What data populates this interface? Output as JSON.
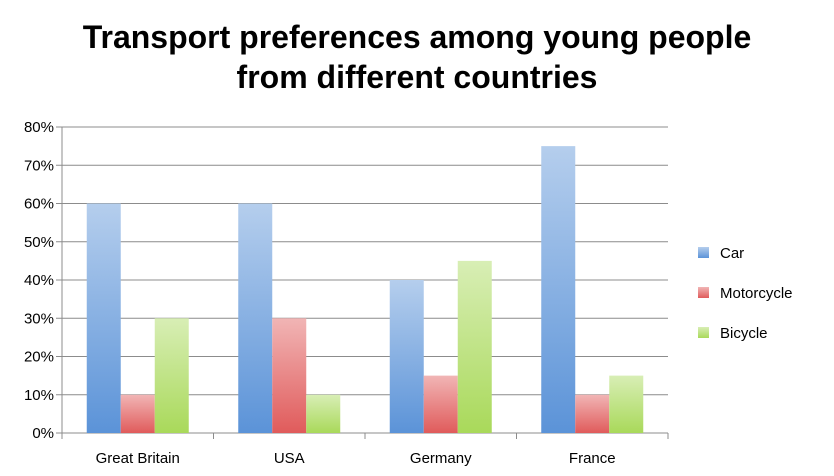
{
  "chart_data": {
    "type": "bar",
    "title_lines": [
      "Transport preferences among young people",
      "from different countries"
    ],
    "categories": [
      "Great Britain",
      "USA",
      "Germany",
      "France"
    ],
    "series": [
      {
        "name": "Car",
        "values": [
          60,
          60,
          40,
          75
        ],
        "color": "#5b93d8"
      },
      {
        "name": "Motorcycle",
        "values": [
          10,
          30,
          15,
          10
        ],
        "color": "#e05b5b"
      },
      {
        "name": "Bicycle",
        "values": [
          30,
          10,
          45,
          15
        ],
        "color": "#a9d95a"
      }
    ],
    "ylim": [
      0,
      80
    ],
    "yticks": [
      0,
      10,
      20,
      30,
      40,
      50,
      60,
      70,
      80
    ],
    "ytick_labels": [
      "0%",
      "10%",
      "20%",
      "30%",
      "40%",
      "50%",
      "60%",
      "70%",
      "80%"
    ],
    "xlabel": "",
    "ylabel": "",
    "grid": true,
    "legend_position": "right"
  }
}
